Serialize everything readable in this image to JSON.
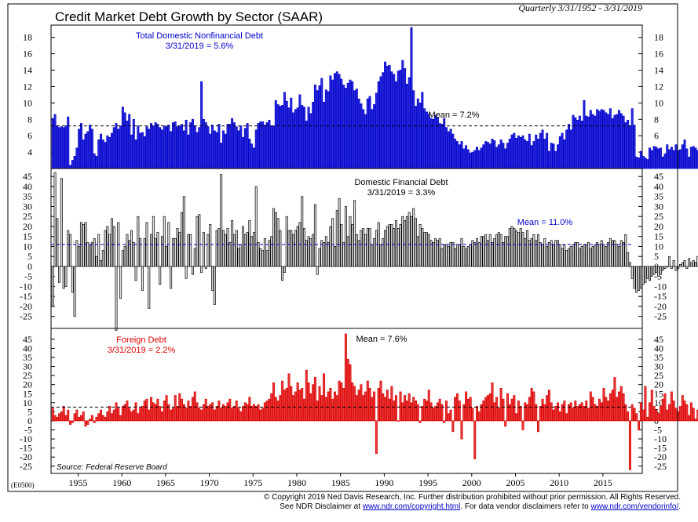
{
  "header": {
    "title": "Credit Market Debt Growth by Sector (SAAR)",
    "date_range": "Quarterly 3/31/1952 - 3/31/2019"
  },
  "chart_code": "(E0500)",
  "source": "Source: Federal Reserve Board",
  "footer": {
    "line1": "© Copyright 2019 Ned Davis Research, Inc.  Further distribution prohibited without prior permission.  All Rights Reserved.",
    "line2_pre": "See NDR Disclaimer at ",
    "link1": "www.ndr.com/copyright.html",
    "line2_mid": ". For data vendor disclaimers refer to ",
    "link2": "www.ndr.com/vendorinfo/",
    "line2_post": "."
  },
  "chart_data": [
    {
      "type": "bar",
      "title": "Total Domestic Nonfinancial Debt",
      "subtitle": "3/31/2019 = 5.6%",
      "color": "#0000cc",
      "bar_fill": "#2a2ad8",
      "baseline": 2,
      "ylim": [
        2,
        19.5
      ],
      "yticks": [
        4,
        6,
        8,
        10,
        12,
        14,
        16,
        18
      ],
      "mean": 7.2,
      "mean_label": "Mean = 7.2%",
      "x_start": 1952,
      "x_step": 0.25,
      "values": [
        8.1,
        8.6,
        7.2,
        7,
        7.1,
        7,
        7.2,
        8.3,
        2.4,
        3,
        3.5,
        4.5,
        6.8,
        7.5,
        5.5,
        6.2,
        6.5,
        7.3,
        6.8,
        3.8,
        3.5,
        5.5,
        6.2,
        5.5,
        5.2,
        6,
        5.8,
        6.3,
        7,
        7.5,
        6.8,
        7.2,
        9.5,
        8.8,
        7.8,
        8.6,
        6.1,
        8,
        5.5,
        7.2,
        6.3,
        6.4,
        5.9,
        7.1,
        6.8,
        7.5,
        7.2,
        7.6,
        7.4,
        7,
        6.7,
        7.2,
        7.1,
        7.3,
        6.5,
        7.6,
        7.7,
        7.1,
        7.2,
        7.4,
        6.6,
        7.9,
        6.1,
        7.6,
        8,
        7.2,
        6.4,
        7,
        12.6,
        8,
        7.6,
        7.1,
        6.2,
        7.3,
        6.6,
        6.4,
        7.4,
        5.1,
        6.6,
        6.2,
        7.4,
        7.4,
        8.1,
        7.6,
        7.1,
        6.6,
        7.2,
        5.8,
        6.9,
        7.5,
        5.6,
        5,
        4.5,
        6.7,
        7.5,
        7.7,
        7.7,
        7.3,
        7.6,
        7.9,
        7.2,
        7.2,
        10.3,
        9.8,
        9.6,
        9.7,
        11.3,
        10.2,
        9.4,
        10.6,
        8.8,
        9.2,
        9.4,
        11,
        9.7,
        9.5,
        7.8,
        9.5,
        8.7,
        10.1,
        12.2,
        11.5,
        12.1,
        13,
        10.1,
        11.6,
        11.4,
        13.3,
        12.8,
        13.6,
        13.8,
        13.5,
        12.9,
        12.2,
        11.8,
        12.4,
        12.8,
        12.6,
        11.5,
        11.7,
        10.5,
        9.9,
        9.2,
        8.6,
        10.5,
        10.8,
        9.2,
        9.8,
        11.2,
        12.6,
        13.2,
        13.7,
        15,
        14.5,
        14.6,
        13.8,
        13.5,
        12.6,
        13.9,
        14,
        15.2,
        14.2,
        12.3,
        13.1,
        19.2,
        11.5,
        9.6,
        10.5,
        10,
        11.3,
        9.3,
        8.9,
        8.6,
        8.1,
        8,
        8.5,
        8.2,
        7.5,
        7.4,
        8.1,
        7,
        6.5,
        6.8,
        6.2,
        5.6,
        5.3,
        4.9,
        5.3,
        4.4,
        4.8,
        4.3,
        3.9,
        4,
        4.2,
        4.6,
        4.2,
        4.5,
        4.9,
        5.3,
        5.2,
        5,
        5.6,
        5.4,
        4.6,
        4.9,
        5.5,
        5.1,
        4.4,
        5.1,
        5.6,
        6.1,
        6.3,
        5.7,
        6,
        5.8,
        6,
        5.5,
        5.3,
        6.2,
        4.8,
        5.3,
        6.1,
        5.6,
        6.3,
        6.7,
        5.6,
        6.3,
        4.1,
        5.1,
        5,
        4.1,
        4.9,
        5.9,
        6.3,
        5.5,
        6.7,
        7.4,
        6.7,
        8.5,
        8.2,
        7.9,
        8.4,
        7.8,
        10.3,
        8.4,
        8.3,
        9.1,
        8.6,
        8.4,
        9.2,
        9,
        9.2,
        9.1,
        8.8,
        8.6,
        9.3,
        8.1,
        8.5,
        8.6,
        9.1,
        8.7,
        8.4,
        7.6,
        7.9,
        7.2,
        9.3,
        7.3,
        3.4,
        3.3,
        4.1,
        3.5,
        3.3,
        3.1,
        4.5,
        4.2,
        4.7,
        4.6,
        4.4,
        4.5,
        3.4,
        3.8,
        4.9,
        4.3,
        4.6,
        4.2,
        4.9,
        4.2,
        4.3,
        4.9,
        5.5,
        4.4,
        3.4,
        4.6,
        4.7,
        4.5,
        4.2,
        3.8,
        4.4,
        3.9,
        4.8,
        4.1,
        3.8,
        4.3,
        4.7,
        4.6,
        5,
        5.8,
        4.6,
        4.2,
        4.6,
        3.9,
        4.2,
        4.5,
        4.6,
        4.1,
        3.2,
        4.3,
        3,
        5.6
      ]
    },
    {
      "type": "bar",
      "title": "Domestic Financial Debt",
      "subtitle": "3/31/2019 = 3.3%",
      "color": "#000000",
      "bar_fill": "#e0e0e0",
      "baseline": 0,
      "ylim": [
        -31,
        49
      ],
      "yticks": [
        -25,
        -20,
        -15,
        -10,
        -5,
        0,
        5,
        10,
        15,
        20,
        25,
        30,
        35,
        40,
        45
      ],
      "mean": 11,
      "mean_label": "Mean = 11.0%",
      "mean_color": "#0000cc",
      "x_start": 1952,
      "x_step": 0.25,
      "values": [
        -20,
        47,
        24,
        -8,
        44,
        -11,
        -10,
        18,
        16,
        -13,
        -25,
        13,
        10,
        22,
        21,
        22,
        12,
        11,
        12,
        14,
        5,
        16,
        3,
        8,
        18,
        20,
        16,
        24,
        20,
        -32,
        22,
        -16,
        8,
        10,
        16,
        13,
        18,
        12,
        -7,
        25,
        14,
        -12,
        14,
        22,
        -21,
        16,
        25,
        14,
        17,
        -9,
        15,
        25,
        10,
        22,
        -11,
        14,
        14,
        19,
        17,
        27,
        35,
        -6,
        16,
        16,
        -4,
        9,
        25,
        26,
        -3,
        17,
        -1,
        16,
        21,
        -12,
        -19,
        18,
        19,
        46,
        18,
        16,
        19,
        12,
        23,
        16,
        18,
        9,
        11,
        20,
        16,
        17,
        23,
        15,
        17,
        40,
        12,
        9,
        8,
        14,
        8,
        13,
        15,
        29,
        27,
        24,
        18,
        -7,
        -3,
        25,
        18,
        18,
        16,
        18,
        20,
        22,
        35,
        19,
        13,
        15,
        14,
        16,
        31,
        -4,
        9,
        13,
        12,
        15,
        12,
        20,
        24,
        10,
        28,
        34,
        21,
        12,
        30,
        15,
        25,
        21,
        33,
        16,
        13,
        18,
        19,
        16,
        19,
        19,
        11,
        14,
        18,
        22,
        11,
        14,
        18,
        20,
        21,
        21,
        19,
        23,
        19,
        21,
        25,
        23,
        25,
        27,
        25,
        29,
        24,
        15,
        21,
        19,
        17,
        17,
        16,
        13,
        12,
        14,
        13,
        14,
        9,
        11,
        11,
        10,
        12,
        12,
        9,
        11,
        11,
        14,
        10,
        9,
        10,
        11,
        13,
        12,
        14,
        12,
        15,
        15,
        16,
        13,
        16,
        12,
        14,
        16,
        17,
        16,
        12,
        15,
        15,
        19,
        20,
        19,
        18,
        17,
        19,
        17,
        14,
        18,
        13,
        14,
        16,
        13,
        16,
        12,
        11,
        14,
        10,
        12,
        13,
        11,
        13,
        13,
        11,
        9,
        11,
        8,
        9,
        10,
        11,
        12,
        12,
        9,
        10,
        11,
        11,
        12,
        9,
        10,
        11,
        12,
        11,
        13,
        11,
        10,
        12,
        14,
        13,
        13,
        11,
        10,
        13,
        12,
        16,
        7,
        2,
        -6,
        -11,
        -13,
        -12,
        -11,
        -9,
        -8,
        -6,
        -7,
        -5,
        -4,
        -3,
        -5,
        -4,
        -2,
        -1,
        0,
        5,
        -1,
        3,
        -2,
        -1,
        1,
        2,
        3,
        -1,
        4,
        2,
        3,
        2,
        5,
        1,
        2,
        3,
        4,
        3,
        2,
        3,
        4,
        2,
        3,
        3,
        2,
        1,
        3,
        2,
        3,
        3,
        2,
        4,
        3,
        3
      ]
    },
    {
      "type": "bar",
      "title": "Foreign Debt",
      "subtitle": "3/31/2019 = 2.2%",
      "color": "#dd0000",
      "bar_fill": "#e63a3a",
      "baseline": 0,
      "ylim": [
        -29,
        51
      ],
      "yticks": [
        -25,
        -20,
        -15,
        -10,
        -5,
        0,
        5,
        10,
        15,
        20,
        25,
        30,
        35,
        40,
        45
      ],
      "mean": 7.6,
      "mean_label": "Mean = 7.6%",
      "mean_color": "#000000",
      "x_start": 1952,
      "x_step": 0.25,
      "values": [
        7,
        3,
        2,
        4,
        5,
        8,
        3,
        6,
        -2,
        -1,
        4,
        6,
        2,
        3,
        5,
        -3,
        -2,
        1,
        3,
        -1,
        2,
        4,
        6,
        3,
        2,
        5,
        8,
        4,
        6,
        10,
        7,
        3,
        8,
        9,
        11,
        7,
        5,
        6,
        10,
        4,
        7,
        8,
        11,
        12,
        6,
        13,
        10,
        9,
        12,
        8,
        5,
        11,
        14,
        9,
        6,
        7,
        14,
        8,
        15,
        12,
        9,
        7,
        11,
        8,
        13,
        16,
        10,
        7,
        6,
        9,
        12,
        8,
        9,
        10,
        6,
        8,
        11,
        7,
        9,
        8,
        10,
        12,
        7,
        8,
        11,
        7,
        5,
        8,
        10,
        9,
        13,
        8,
        9,
        8,
        9,
        6,
        7,
        10,
        11,
        12,
        15,
        21,
        13,
        11,
        14,
        22,
        17,
        18,
        26,
        19,
        14,
        16,
        21,
        17,
        18,
        12,
        28,
        21,
        15,
        20,
        24,
        11,
        19,
        14,
        26,
        13,
        16,
        18,
        12,
        16,
        14,
        22,
        21,
        18,
        48,
        34,
        31,
        21,
        19,
        14,
        17,
        20,
        14,
        16,
        22,
        18,
        13,
        16,
        -18,
        18,
        22,
        15,
        13,
        17,
        12,
        19,
        11,
        14,
        0,
        16,
        10,
        14,
        11,
        15,
        10,
        13,
        11,
        9,
        -1,
        8,
        12,
        11,
        17,
        10,
        7,
        8,
        10,
        12,
        9,
        -1,
        11,
        4,
        6,
        -6,
        13,
        15,
        11,
        -10,
        9,
        16,
        12,
        13,
        7,
        -21,
        8,
        5,
        9,
        11,
        13,
        14,
        15,
        21,
        10,
        13,
        7,
        18,
        12,
        -3,
        15,
        9,
        12,
        14,
        4,
        11,
        8,
        -5,
        10,
        9,
        13,
        18,
        16,
        9,
        -6,
        8,
        12,
        9,
        14,
        17,
        10,
        6,
        8,
        10,
        5,
        9,
        11,
        4,
        9,
        10,
        7,
        11,
        8,
        9,
        10,
        8,
        11,
        7,
        16,
        13,
        9,
        8,
        12,
        10,
        18,
        13,
        11,
        15,
        17,
        24,
        13,
        16,
        19,
        15,
        9,
        5,
        -27,
        9,
        7,
        4,
        -5,
        10,
        6,
        19,
        2,
        10,
        17,
        8,
        6,
        4,
        8,
        12,
        15,
        6,
        9,
        16,
        11,
        7,
        5,
        8,
        14,
        11,
        9,
        3,
        10,
        7,
        1,
        6,
        4,
        5,
        -2,
        8,
        6,
        3,
        7,
        5,
        4,
        9,
        12,
        6,
        15,
        11,
        9,
        5,
        4,
        8,
        3,
        -4,
        6,
        2,
        2
      ]
    }
  ],
  "x_axis": {
    "ticks": [
      "1955",
      "1960",
      "1965",
      "1970",
      "1975",
      "1980",
      "1985",
      "1990",
      "1995",
      "2000",
      "2005",
      "2010",
      "2015"
    ],
    "years": [
      1955,
      1960,
      1965,
      1970,
      1975,
      1980,
      1985,
      1990,
      1995,
      2000,
      2005,
      2010,
      2015
    ],
    "xlim": [
      1951.9,
      2019.5
    ]
  }
}
